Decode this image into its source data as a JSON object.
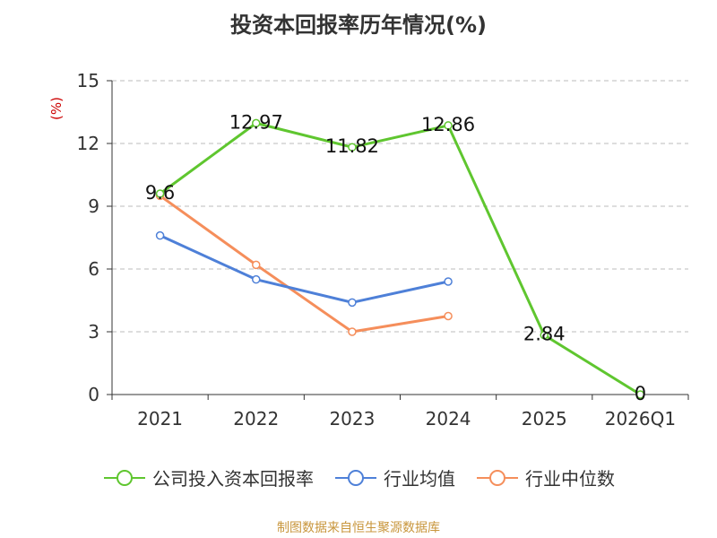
{
  "chart_data": {
    "type": "line",
    "title": "投资本回报率历年情况(%)",
    "ylabel": "(%)",
    "categories": [
      "2021",
      "2022",
      "2023",
      "2024",
      "2025",
      "2026Q1"
    ],
    "ylim": [
      0,
      15
    ],
    "yticks": [
      0,
      3,
      6,
      9,
      12,
      15
    ],
    "grid": true,
    "legend_position": "bottom",
    "series": [
      {
        "name": "公司投入资本回报率",
        "color": "#5fc62f",
        "values": [
          9.6,
          12.97,
          11.82,
          12.86,
          2.84,
          0
        ],
        "labels": [
          "9.6",
          "12.97",
          "11.82",
          "12.86",
          "2.84",
          "0"
        ]
      },
      {
        "name": "行业均值",
        "color": "#4e80d8",
        "values": [
          7.6,
          5.5,
          4.4,
          5.4,
          null,
          null
        ]
      },
      {
        "name": "行业中位数",
        "color": "#f58e5b",
        "values": [
          9.5,
          6.2,
          3.0,
          3.75,
          null,
          null
        ]
      }
    ]
  },
  "source": "制图数据来自恒生聚源数据库"
}
